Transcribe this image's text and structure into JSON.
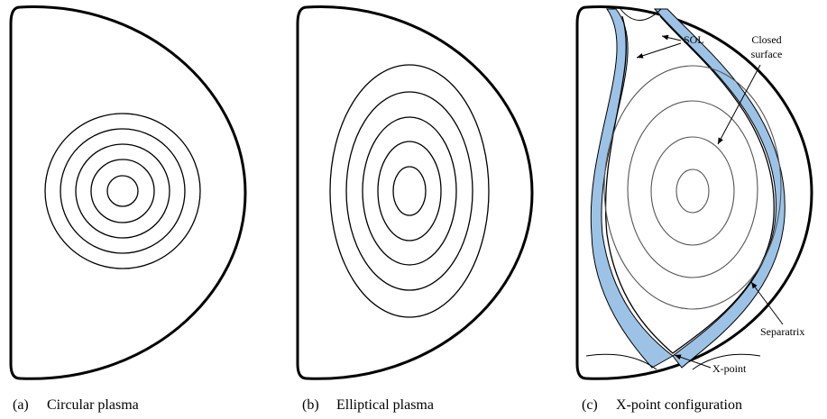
{
  "panels": [
    {
      "label": "(a)",
      "caption": "Circular plasma"
    },
    {
      "label": "(b)",
      "caption": "Elliptical plasma"
    },
    {
      "label": "(c)",
      "caption": "X-point configuration"
    }
  ],
  "annotations": {
    "sol": "SOL",
    "closed": [
      "Closed",
      "surface"
    ],
    "separatrix": "Separatrix",
    "xpoint": "X-point"
  }
}
